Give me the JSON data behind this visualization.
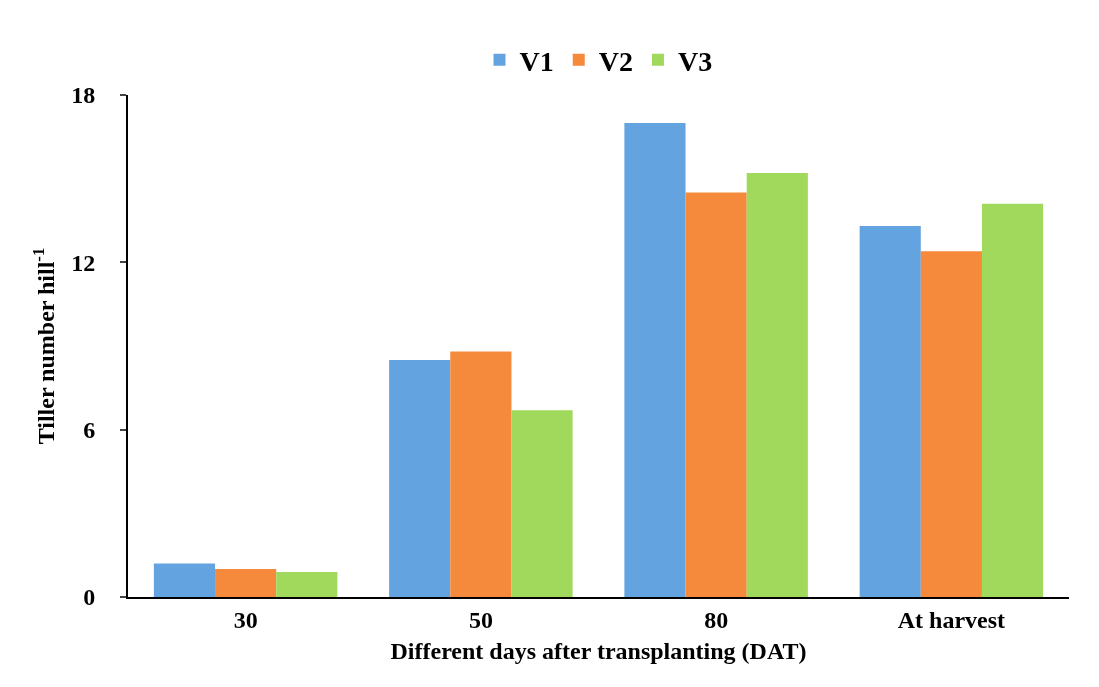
{
  "chart_data": {
    "type": "bar",
    "xlabel": "Different days after transplanting (DAT)",
    "ylabel": "Tiller number hill$^{-1}$",
    "categories": [
      "30",
      "50",
      "80",
      "At harvest"
    ],
    "series": [
      {
        "name": "V1",
        "color": "#63a3df",
        "values": [
          1.2,
          8.5,
          17.0,
          13.3
        ]
      },
      {
        "name": "V2",
        "color": "#f5893c",
        "values": [
          1.0,
          8.8,
          14.5,
          12.4
        ]
      },
      {
        "name": "V3",
        "color": "#a0d95b",
        "values": [
          0.9,
          6.7,
          15.2,
          14.1
        ]
      }
    ],
    "ylim": [
      0,
      18
    ],
    "yticks": [
      0,
      6,
      12,
      18
    ],
    "grid": false,
    "legend": "top"
  }
}
